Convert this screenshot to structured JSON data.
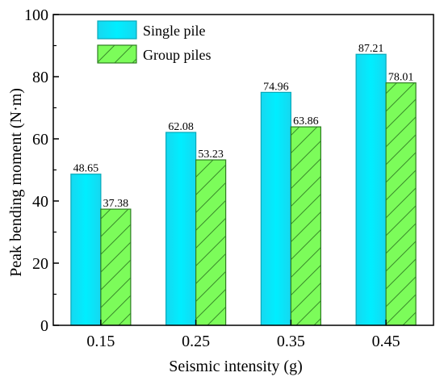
{
  "chart_data": {
    "type": "bar",
    "title": "",
    "xlabel": "Seismic intensity (g)",
    "ylabel": "Peak bending moment (N·m)",
    "categories": [
      "0.15",
      "0.25",
      "0.35",
      "0.45"
    ],
    "ylim": [
      0,
      100
    ],
    "yticks": [
      "0",
      "20",
      "40",
      "60",
      "80",
      "100"
    ],
    "grid": false,
    "legend_position": "top-left",
    "series": [
      {
        "name": "Single pile",
        "values": [
          48.65,
          62.08,
          74.96,
          87.21
        ],
        "labels": [
          "48.65",
          "62.08",
          "74.96",
          "87.21"
        ],
        "color": "#00E5FF",
        "pattern": "solid"
      },
      {
        "name": "Group piles",
        "values": [
          37.38,
          53.23,
          63.86,
          78.01
        ],
        "labels": [
          "37.38",
          "53.23",
          "63.86",
          "78.01"
        ],
        "color": "#7CFC5A",
        "pattern": "diagonal-hatch"
      }
    ]
  }
}
